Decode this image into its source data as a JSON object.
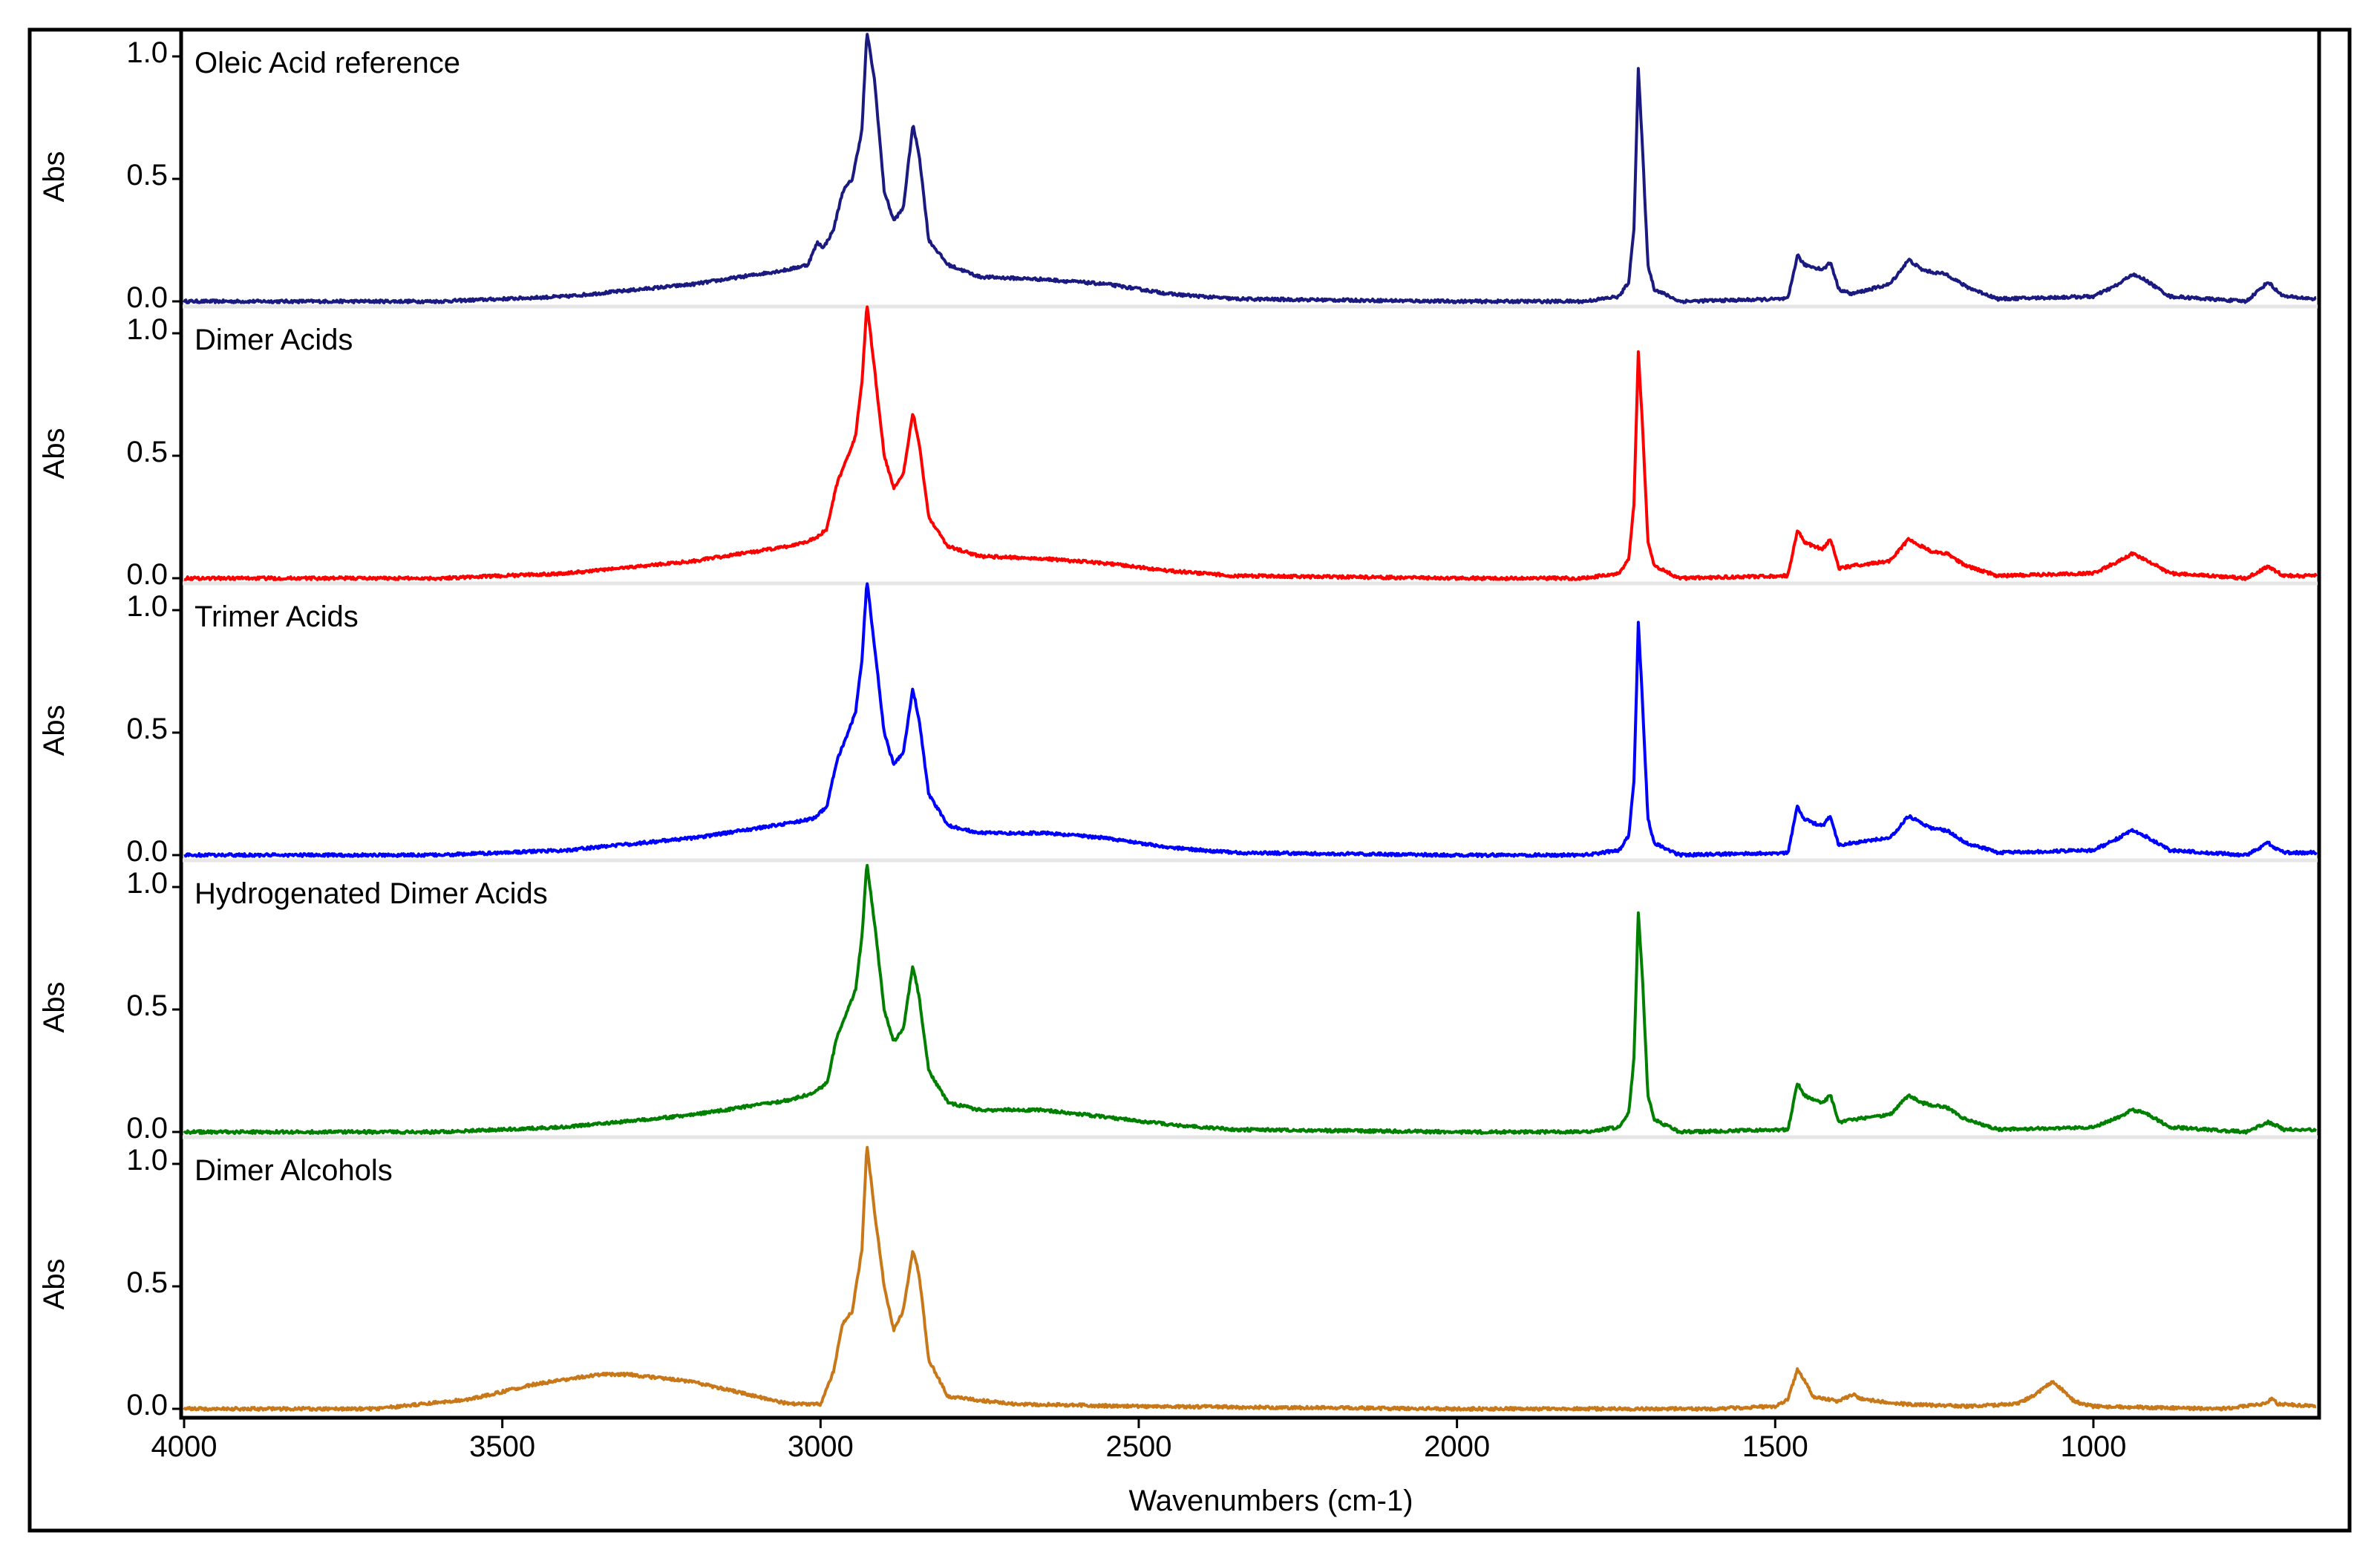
{
  "chart_data": {
    "type": "line",
    "xlabel": "Wavenumbers (cm-1)",
    "ylabel": "Abs",
    "xlim": [
      4000,
      650
    ],
    "xticks": [
      4000,
      3500,
      3000,
      2500,
      2000,
      1500,
      1000
    ],
    "ylim": [
      0,
      1.05
    ],
    "yticks": [
      0.0,
      0.5,
      1.0
    ],
    "ytick_labels": [
      "0.0",
      "0.5",
      "1.0"
    ],
    "x_reversed": true,
    "grid": false,
    "panels": [
      {
        "name": "Oleic Acid reference",
        "color": "#1a1a80",
        "baseline": [
          [
            4000,
            0.0
          ],
          [
            3600,
            0.0
          ],
          [
            3400,
            0.02
          ],
          [
            3200,
            0.07
          ],
          [
            3100,
            0.11
          ],
          [
            3050,
            0.13
          ],
          [
            3020,
            0.15
          ],
          [
            3005,
            0.24
          ],
          [
            2995,
            0.22
          ],
          [
            2980,
            0.29
          ],
          [
            2965,
            0.45
          ],
          [
            2950,
            0.5
          ],
          [
            2935,
            0.7
          ],
          [
            2927,
            1.1
          ],
          [
            2915,
            0.9
          ],
          [
            2900,
            0.45
          ],
          [
            2885,
            0.33
          ],
          [
            2870,
            0.38
          ],
          [
            2855,
            0.72
          ],
          [
            2845,
            0.6
          ],
          [
            2830,
            0.25
          ],
          [
            2800,
            0.15
          ],
          [
            2750,
            0.1
          ],
          [
            2650,
            0.09
          ],
          [
            2550,
            0.07
          ],
          [
            2450,
            0.03
          ],
          [
            2350,
            0.01
          ],
          [
            2000,
            0.0
          ],
          [
            1800,
            0.0
          ],
          [
            1745,
            0.02
          ],
          [
            1730,
            0.08
          ],
          [
            1722,
            0.3
          ],
          [
            1715,
            0.95
          ],
          [
            1708,
            0.6
          ],
          [
            1700,
            0.15
          ],
          [
            1690,
            0.05
          ],
          [
            1650,
            0.0
          ],
          [
            1480,
            0.01
          ],
          [
            1465,
            0.19
          ],
          [
            1455,
            0.15
          ],
          [
            1440,
            0.14
          ],
          [
            1425,
            0.13
          ],
          [
            1413,
            0.16
          ],
          [
            1400,
            0.05
          ],
          [
            1380,
            0.03
          ],
          [
            1320,
            0.07
          ],
          [
            1290,
            0.17
          ],
          [
            1270,
            0.13
          ],
          [
            1255,
            0.12
          ],
          [
            1230,
            0.11
          ],
          [
            1200,
            0.06
          ],
          [
            1150,
            0.01
          ],
          [
            1000,
            0.02
          ],
          [
            960,
            0.07
          ],
          [
            940,
            0.11
          ],
          [
            920,
            0.09
          ],
          [
            880,
            0.02
          ],
          [
            760,
            0.0
          ],
          [
            725,
            0.08
          ],
          [
            715,
            0.05
          ],
          [
            700,
            0.02
          ],
          [
            650,
            0.01
          ]
        ]
      },
      {
        "name": "Dimer Acids",
        "color": "#ff0000",
        "baseline": [
          [
            4000,
            0.0
          ],
          [
            3600,
            0.0
          ],
          [
            3400,
            0.02
          ],
          [
            3200,
            0.07
          ],
          [
            3100,
            0.11
          ],
          [
            3050,
            0.13
          ],
          [
            3010,
            0.16
          ],
          [
            2990,
            0.2
          ],
          [
            2975,
            0.38
          ],
          [
            2960,
            0.48
          ],
          [
            2945,
            0.58
          ],
          [
            2935,
            0.8
          ],
          [
            2927,
            1.12
          ],
          [
            2915,
            0.85
          ],
          [
            2900,
            0.5
          ],
          [
            2885,
            0.37
          ],
          [
            2870,
            0.42
          ],
          [
            2855,
            0.68
          ],
          [
            2845,
            0.55
          ],
          [
            2830,
            0.25
          ],
          [
            2800,
            0.13
          ],
          [
            2750,
            0.09
          ],
          [
            2650,
            0.08
          ],
          [
            2550,
            0.06
          ],
          [
            2450,
            0.03
          ],
          [
            2350,
            0.01
          ],
          [
            2000,
            0.0
          ],
          [
            1800,
            0.0
          ],
          [
            1745,
            0.02
          ],
          [
            1730,
            0.08
          ],
          [
            1722,
            0.3
          ],
          [
            1715,
            0.93
          ],
          [
            1708,
            0.6
          ],
          [
            1700,
            0.15
          ],
          [
            1690,
            0.05
          ],
          [
            1650,
            0.0
          ],
          [
            1480,
            0.01
          ],
          [
            1465,
            0.2
          ],
          [
            1455,
            0.15
          ],
          [
            1440,
            0.13
          ],
          [
            1425,
            0.12
          ],
          [
            1413,
            0.16
          ],
          [
            1400,
            0.04
          ],
          [
            1380,
            0.05
          ],
          [
            1320,
            0.07
          ],
          [
            1290,
            0.16
          ],
          [
            1270,
            0.13
          ],
          [
            1255,
            0.11
          ],
          [
            1230,
            0.1
          ],
          [
            1200,
            0.05
          ],
          [
            1150,
            0.01
          ],
          [
            1000,
            0.02
          ],
          [
            960,
            0.07
          ],
          [
            940,
            0.1
          ],
          [
            920,
            0.08
          ],
          [
            880,
            0.02
          ],
          [
            760,
            0.0
          ],
          [
            725,
            0.05
          ],
          [
            715,
            0.03
          ],
          [
            700,
            0.01
          ],
          [
            650,
            0.01
          ]
        ]
      },
      {
        "name": "Trimer Acids",
        "color": "#0000ff",
        "baseline": [
          [
            4000,
            0.0
          ],
          [
            3600,
            0.0
          ],
          [
            3400,
            0.02
          ],
          [
            3200,
            0.07
          ],
          [
            3100,
            0.11
          ],
          [
            3050,
            0.13
          ],
          [
            3010,
            0.15
          ],
          [
            2990,
            0.2
          ],
          [
            2975,
            0.38
          ],
          [
            2960,
            0.48
          ],
          [
            2945,
            0.58
          ],
          [
            2935,
            0.8
          ],
          [
            2927,
            1.12
          ],
          [
            2915,
            0.85
          ],
          [
            2900,
            0.5
          ],
          [
            2885,
            0.37
          ],
          [
            2870,
            0.42
          ],
          [
            2855,
            0.68
          ],
          [
            2845,
            0.55
          ],
          [
            2830,
            0.25
          ],
          [
            2800,
            0.12
          ],
          [
            2750,
            0.09
          ],
          [
            2650,
            0.09
          ],
          [
            2550,
            0.07
          ],
          [
            2450,
            0.03
          ],
          [
            2350,
            0.01
          ],
          [
            2000,
            0.0
          ],
          [
            1800,
            0.0
          ],
          [
            1745,
            0.02
          ],
          [
            1730,
            0.08
          ],
          [
            1722,
            0.3
          ],
          [
            1715,
            0.95
          ],
          [
            1708,
            0.6
          ],
          [
            1700,
            0.15
          ],
          [
            1690,
            0.05
          ],
          [
            1650,
            0.0
          ],
          [
            1480,
            0.01
          ],
          [
            1465,
            0.2
          ],
          [
            1455,
            0.15
          ],
          [
            1440,
            0.13
          ],
          [
            1425,
            0.12
          ],
          [
            1413,
            0.16
          ],
          [
            1400,
            0.04
          ],
          [
            1380,
            0.05
          ],
          [
            1320,
            0.07
          ],
          [
            1290,
            0.16
          ],
          [
            1270,
            0.13
          ],
          [
            1255,
            0.11
          ],
          [
            1230,
            0.1
          ],
          [
            1200,
            0.05
          ],
          [
            1150,
            0.01
          ],
          [
            1000,
            0.02
          ],
          [
            960,
            0.07
          ],
          [
            940,
            0.1
          ],
          [
            920,
            0.08
          ],
          [
            880,
            0.02
          ],
          [
            760,
            0.0
          ],
          [
            725,
            0.05
          ],
          [
            715,
            0.03
          ],
          [
            700,
            0.01
          ],
          [
            650,
            0.01
          ]
        ]
      },
      {
        "name": "Hydrogenated Dimer Acids",
        "color": "#008000",
        "baseline": [
          [
            4000,
            0.0
          ],
          [
            3600,
            0.0
          ],
          [
            3400,
            0.02
          ],
          [
            3200,
            0.07
          ],
          [
            3100,
            0.11
          ],
          [
            3050,
            0.13
          ],
          [
            3010,
            0.16
          ],
          [
            2990,
            0.2
          ],
          [
            2975,
            0.38
          ],
          [
            2960,
            0.48
          ],
          [
            2945,
            0.58
          ],
          [
            2935,
            0.8
          ],
          [
            2927,
            1.1
          ],
          [
            2915,
            0.85
          ],
          [
            2900,
            0.5
          ],
          [
            2885,
            0.37
          ],
          [
            2870,
            0.42
          ],
          [
            2855,
            0.68
          ],
          [
            2845,
            0.55
          ],
          [
            2830,
            0.25
          ],
          [
            2800,
            0.12
          ],
          [
            2750,
            0.09
          ],
          [
            2650,
            0.09
          ],
          [
            2550,
            0.06
          ],
          [
            2450,
            0.03
          ],
          [
            2350,
            0.01
          ],
          [
            2000,
            0.0
          ],
          [
            1800,
            0.0
          ],
          [
            1745,
            0.02
          ],
          [
            1730,
            0.08
          ],
          [
            1722,
            0.3
          ],
          [
            1715,
            0.9
          ],
          [
            1708,
            0.6
          ],
          [
            1700,
            0.15
          ],
          [
            1690,
            0.05
          ],
          [
            1650,
            0.0
          ],
          [
            1480,
            0.01
          ],
          [
            1465,
            0.2
          ],
          [
            1455,
            0.15
          ],
          [
            1440,
            0.13
          ],
          [
            1425,
            0.12
          ],
          [
            1413,
            0.15
          ],
          [
            1400,
            0.04
          ],
          [
            1380,
            0.05
          ],
          [
            1320,
            0.07
          ],
          [
            1290,
            0.15
          ],
          [
            1270,
            0.12
          ],
          [
            1255,
            0.11
          ],
          [
            1230,
            0.1
          ],
          [
            1200,
            0.05
          ],
          [
            1150,
            0.01
          ],
          [
            1000,
            0.02
          ],
          [
            960,
            0.06
          ],
          [
            940,
            0.09
          ],
          [
            920,
            0.08
          ],
          [
            880,
            0.02
          ],
          [
            760,
            0.0
          ],
          [
            725,
            0.04
          ],
          [
            715,
            0.03
          ],
          [
            700,
            0.01
          ],
          [
            650,
            0.01
          ]
        ]
      },
      {
        "name": "Dimer Alcohols",
        "color": "#c87818",
        "baseline": [
          [
            4000,
            0.0
          ],
          [
            3700,
            0.0
          ],
          [
            3550,
            0.04
          ],
          [
            3450,
            0.1
          ],
          [
            3350,
            0.14
          ],
          [
            3300,
            0.14
          ],
          [
            3200,
            0.11
          ],
          [
            3100,
            0.05
          ],
          [
            3050,
            0.02
          ],
          [
            3000,
            0.02
          ],
          [
            2980,
            0.15
          ],
          [
            2965,
            0.35
          ],
          [
            2950,
            0.4
          ],
          [
            2935,
            0.65
          ],
          [
            2927,
            1.08
          ],
          [
            2915,
            0.8
          ],
          [
            2900,
            0.5
          ],
          [
            2885,
            0.32
          ],
          [
            2870,
            0.4
          ],
          [
            2855,
            0.65
          ],
          [
            2845,
            0.55
          ],
          [
            2830,
            0.2
          ],
          [
            2800,
            0.05
          ],
          [
            2700,
            0.02
          ],
          [
            2500,
            0.01
          ],
          [
            2000,
            0.0
          ],
          [
            1600,
            0.0
          ],
          [
            1500,
            0.01
          ],
          [
            1480,
            0.04
          ],
          [
            1465,
            0.16
          ],
          [
            1455,
            0.12
          ],
          [
            1440,
            0.05
          ],
          [
            1400,
            0.03
          ],
          [
            1378,
            0.06
          ],
          [
            1365,
            0.04
          ],
          [
            1300,
            0.02
          ],
          [
            1200,
            0.01
          ],
          [
            1120,
            0.02
          ],
          [
            1090,
            0.06
          ],
          [
            1065,
            0.11
          ],
          [
            1050,
            0.08
          ],
          [
            1030,
            0.03
          ],
          [
            1000,
            0.01
          ],
          [
            800,
            0.0
          ],
          [
            730,
            0.02
          ],
          [
            720,
            0.04
          ],
          [
            710,
            0.02
          ],
          [
            650,
            0.01
          ]
        ]
      }
    ]
  }
}
